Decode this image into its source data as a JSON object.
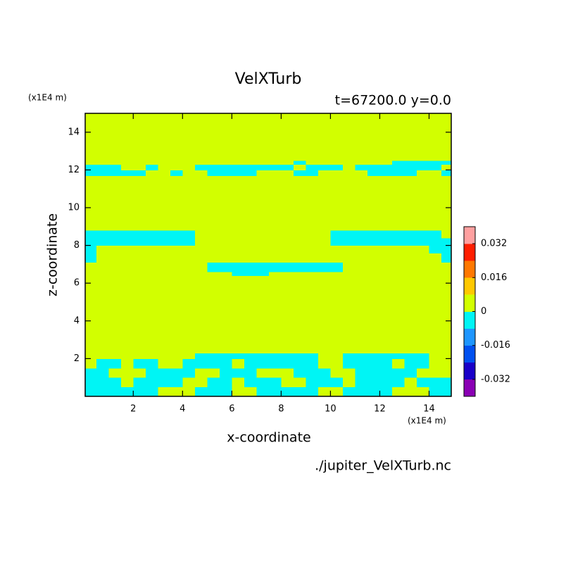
{
  "chart_data": {
    "type": "contour",
    "title": "VelXTurb",
    "subtitle": "t=67200.0 y=0.0",
    "x_label": "x-coordinate",
    "y_label": "z-coordinate",
    "x_unit": "(x1E4 m)",
    "y_unit": "(x1E4 m)",
    "source": "./jupiter_VelXTurb.nc",
    "xlim": [
      0.05,
      14.9
    ],
    "ylim": [
      0,
      15
    ],
    "xticks": [
      2,
      4,
      6,
      8,
      10,
      12,
      14
    ],
    "yticks": [
      2,
      4,
      6,
      8,
      10,
      12,
      14
    ],
    "levels": [
      -0.04,
      -0.032,
      -0.024,
      -0.016,
      -0.008,
      0,
      0.008,
      0.016,
      0.024,
      0.032,
      0.04
    ],
    "colors": [
      "#8a00b4",
      "#1a00c8",
      "#0050f0",
      "#1e96ff",
      "#00f5f5",
      "#d2ff00",
      "#ffc800",
      "#ff7800",
      "#ff1e00",
      "#ffa0a0"
    ],
    "colorbar_ticks": [
      -0.032,
      -0.016,
      0,
      0.016,
      0.032
    ],
    "x_edges": [
      0,
      0.5,
      1,
      1.5,
      2,
      2.5,
      3,
      3.5,
      4,
      4.5,
      5,
      5.5,
      6,
      6.5,
      7,
      7.5,
      8,
      8.5,
      9,
      9.5,
      10,
      10.5,
      11,
      11.5,
      12,
      12.5,
      13,
      13.5,
      14,
      14.5,
      15
    ],
    "z_edges": [
      0,
      0.5,
      1,
      1.5,
      2,
      2.3,
      6.4,
      6.6,
      7.1,
      7.6,
      8.0,
      8.4,
      8.8,
      11.7,
      12.0,
      12.3,
      12.5,
      15
    ],
    "z": [
      [
        -0.004,
        -0.004,
        -0.004,
        -0.004,
        -0.004,
        -0.004,
        0.004,
        0.004,
        0.004,
        -0.004,
        -0.004,
        -0.004,
        0.004,
        0.004,
        -0.004,
        -0.004,
        -0.004,
        -0.004,
        -0.004,
        0.004,
        0.004,
        -0.004,
        -0.004,
        -0.004,
        -0.004,
        0.004,
        0.004,
        0.004,
        -0.004,
        -0.004
      ],
      [
        -0.004,
        -0.004,
        -0.004,
        0.004,
        -0.004,
        -0.004,
        -0.004,
        -0.004,
        0.004,
        0.004,
        -0.004,
        -0.004,
        0.004,
        -0.004,
        -0.004,
        -0.004,
        0.004,
        0.004,
        -0.004,
        -0.004,
        -0.004,
        0.004,
        -0.004,
        -0.004,
        -0.004,
        -0.004,
        0.004,
        -0.004,
        -0.004,
        -0.004
      ],
      [
        -0.004,
        -0.004,
        0.004,
        0.004,
        0.004,
        -0.004,
        -0.004,
        -0.004,
        -0.004,
        0.004,
        0.004,
        -0.004,
        -0.004,
        -0.004,
        0.004,
        0.004,
        0.004,
        -0.004,
        -0.004,
        -0.004,
        0.004,
        0.004,
        -0.004,
        -0.004,
        -0.004,
        -0.004,
        -0.004,
        0.004,
        0.004,
        0.004
      ],
      [
        0.004,
        -0.004,
        -0.004,
        0.004,
        -0.004,
        -0.004,
        0.004,
        0.004,
        -0.004,
        -0.004,
        -0.004,
        -0.004,
        0.004,
        -0.004,
        -0.004,
        -0.004,
        -0.004,
        -0.004,
        -0.004,
        0.004,
        0.004,
        -0.004,
        -0.004,
        -0.004,
        -0.004,
        0.004,
        -0.004,
        -0.004,
        0.004,
        0.004
      ],
      [
        0.004,
        0.004,
        0.004,
        0.004,
        0.004,
        0.004,
        0.004,
        0.004,
        0.004,
        -0.004,
        -0.004,
        -0.004,
        -0.004,
        -0.004,
        -0.004,
        -0.004,
        -0.004,
        -0.004,
        -0.004,
        0.004,
        0.004,
        -0.004,
        -0.004,
        -0.004,
        -0.004,
        -0.004,
        -0.004,
        -0.004,
        0.004,
        0.004
      ],
      [
        0.004,
        0.004,
        0.004,
        0.004,
        0.004,
        0.004,
        0.004,
        0.004,
        0.004,
        0.004,
        0.004,
        0.004,
        0.004,
        0.004,
        0.004,
        0.004,
        0.004,
        0.004,
        0.004,
        0.004,
        0.004,
        0.004,
        0.004,
        0.004,
        0.004,
        0.004,
        0.004,
        0.004,
        0.004,
        0.004
      ],
      [
        0.004,
        0.004,
        0.004,
        0.004,
        0.004,
        0.004,
        0.004,
        0.004,
        0.004,
        0.004,
        0.004,
        0.004,
        -0.004,
        -0.004,
        -0.004,
        0.004,
        0.004,
        0.004,
        0.004,
        0.004,
        0.004,
        0.004,
        0.004,
        0.004,
        0.004,
        0.004,
        0.004,
        0.004,
        0.004,
        0.004
      ],
      [
        0.004,
        0.004,
        0.004,
        0.004,
        0.004,
        0.004,
        0.004,
        0.004,
        0.004,
        0.004,
        -0.004,
        -0.004,
        -0.004,
        -0.004,
        -0.004,
        -0.004,
        -0.004,
        -0.004,
        -0.004,
        -0.004,
        -0.004,
        0.004,
        0.004,
        0.004,
        0.004,
        0.004,
        0.004,
        0.004,
        0.004,
        0.004
      ],
      [
        -0.004,
        0.004,
        0.004,
        0.004,
        0.004,
        0.004,
        0.004,
        0.004,
        0.004,
        0.004,
        0.004,
        0.004,
        0.004,
        0.004,
        0.004,
        0.004,
        0.004,
        0.004,
        0.004,
        0.004,
        0.004,
        0.004,
        0.004,
        0.004,
        0.004,
        0.004,
        0.004,
        0.004,
        0.004,
        -0.004
      ],
      [
        -0.004,
        0.004,
        0.004,
        0.004,
        0.004,
        0.004,
        0.004,
        0.004,
        0.004,
        0.004,
        0.004,
        0.004,
        0.004,
        0.004,
        0.004,
        0.004,
        0.004,
        0.004,
        0.004,
        0.004,
        0.004,
        0.004,
        0.004,
        0.004,
        0.004,
        0.004,
        0.004,
        0.004,
        -0.004,
        -0.004
      ],
      [
        -0.004,
        -0.004,
        -0.004,
        -0.004,
        -0.004,
        -0.004,
        -0.004,
        -0.004,
        -0.004,
        0.004,
        0.004,
        0.004,
        0.004,
        0.004,
        0.004,
        0.004,
        0.004,
        0.004,
        0.004,
        0.004,
        -0.004,
        -0.004,
        -0.004,
        -0.004,
        -0.004,
        -0.004,
        -0.004,
        -0.004,
        -0.004,
        -0.004
      ],
      [
        -0.004,
        -0.004,
        -0.004,
        -0.004,
        -0.004,
        -0.004,
        -0.004,
        -0.004,
        -0.004,
        0.004,
        0.004,
        0.004,
        0.004,
        0.004,
        0.004,
        0.004,
        0.004,
        0.004,
        0.004,
        0.004,
        -0.004,
        -0.004,
        -0.004,
        -0.004,
        -0.004,
        -0.004,
        -0.004,
        -0.004,
        -0.004,
        0.004
      ],
      [
        0.004,
        0.004,
        0.004,
        0.004,
        0.004,
        0.004,
        0.004,
        0.004,
        0.004,
        0.004,
        0.004,
        0.004,
        0.004,
        0.004,
        0.004,
        0.004,
        0.004,
        0.004,
        0.004,
        0.004,
        0.004,
        0.004,
        0.004,
        0.004,
        0.004,
        0.004,
        0.004,
        0.004,
        0.004,
        0.004
      ],
      [
        -0.004,
        -0.004,
        -0.004,
        -0.004,
        -0.004,
        0.004,
        0.004,
        -0.004,
        0.004,
        0.004,
        -0.004,
        -0.004,
        -0.004,
        -0.004,
        0.004,
        0.004,
        0.004,
        -0.004,
        -0.004,
        0.004,
        0.004,
        0.004,
        0.004,
        -0.004,
        -0.004,
        -0.004,
        -0.004,
        0.004,
        0.004,
        -0.004
      ],
      [
        -0.004,
        -0.004,
        -0.004,
        0.004,
        0.004,
        -0.004,
        0.004,
        0.004,
        0.004,
        -0.004,
        -0.004,
        -0.004,
        -0.004,
        -0.004,
        -0.004,
        -0.004,
        -0.004,
        0.004,
        -0.004,
        -0.004,
        -0.004,
        0.004,
        -0.004,
        -0.004,
        -0.004,
        -0.004,
        -0.004,
        -0.004,
        -0.004,
        0.004
      ],
      [
        0.004,
        0.004,
        0.004,
        0.004,
        0.004,
        0.004,
        0.004,
        0.004,
        0.004,
        0.004,
        0.004,
        0.004,
        0.004,
        0.004,
        0.004,
        0.004,
        0.004,
        -0.004,
        0.004,
        0.004,
        0.004,
        0.004,
        0.004,
        0.004,
        0.004,
        -0.004,
        -0.004,
        -0.004,
        -0.004,
        -0.004
      ],
      [
        0.004,
        0.004,
        0.004,
        0.004,
        0.004,
        0.004,
        0.004,
        0.004,
        0.004,
        0.004,
        0.004,
        0.004,
        0.004,
        0.004,
        0.004,
        0.004,
        0.004,
        0.004,
        0.004,
        0.004,
        0.004,
        0.004,
        0.004,
        0.004,
        0.004,
        0.004,
        0.004,
        0.004,
        0.004,
        0.004
      ]
    ]
  }
}
